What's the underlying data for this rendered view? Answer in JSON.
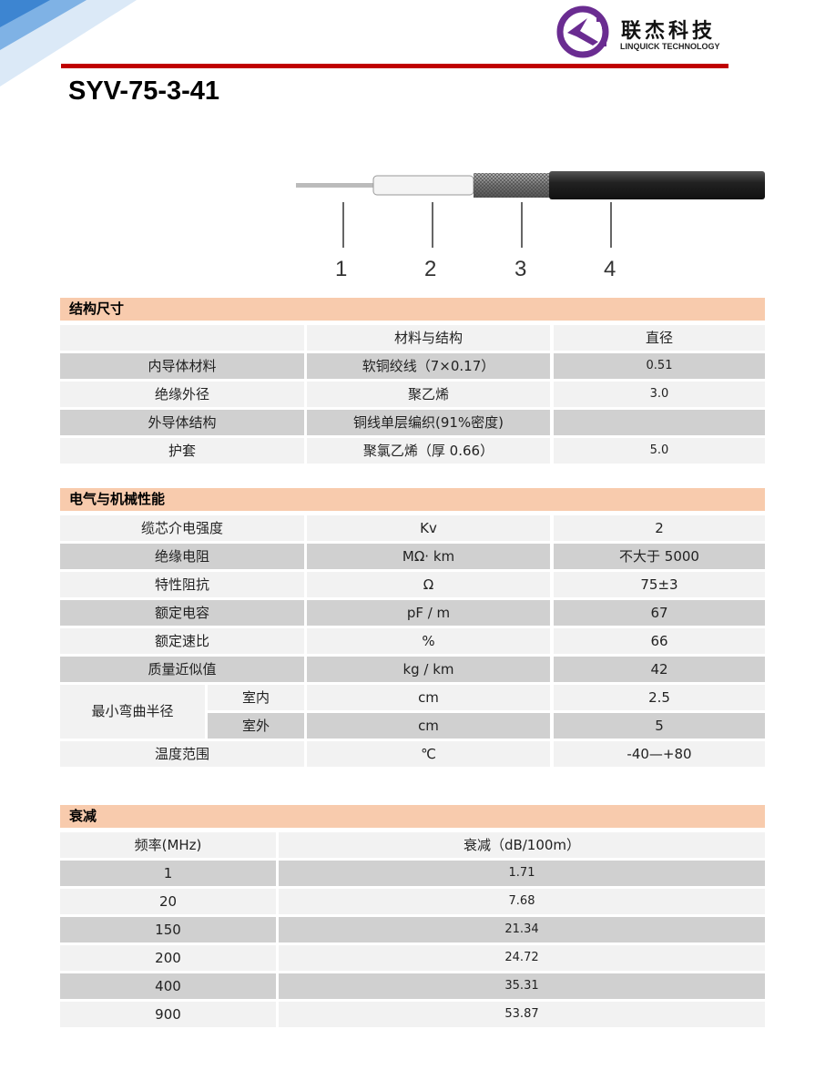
{
  "logo": {
    "cn": "联杰科技",
    "en": "LINQUICK TECHNOLOGY"
  },
  "title": "SYV-75-3-41",
  "callouts": [
    "1",
    "2",
    "3",
    "4"
  ],
  "structure": {
    "heading": "结构尺寸",
    "columns": [
      "",
      "材料与结构",
      "直径"
    ],
    "rows": [
      [
        "内导体材料",
        "软铜绞线（7×0.17）",
        "0.51"
      ],
      [
        "绝缘外径",
        "聚乙烯",
        "3.0"
      ],
      [
        "外导体结构",
        "铜线单层编织(91%密度)",
        ""
      ],
      [
        "护套",
        "聚氯乙烯（厚 0.66）",
        "5.0"
      ]
    ]
  },
  "electrical": {
    "heading": "电气与机械性能",
    "rows": [
      [
        "缆芯介电强度",
        "Kv",
        "2"
      ],
      [
        "绝缘电阻",
        "MΩ· km",
        "不大于 5000"
      ],
      [
        "特性阻抗",
        "Ω",
        "75±3"
      ],
      [
        "额定电容",
        "pF / m",
        "67"
      ],
      [
        "额定速比",
        "%",
        "66"
      ],
      [
        "质量近似值",
        "kg / km",
        "42"
      ]
    ],
    "bend": {
      "label": "最小弯曲半径",
      "rows": [
        [
          "室内",
          "cm",
          "2.5"
        ],
        [
          "室外",
          "cm",
          "5"
        ]
      ]
    },
    "temp": [
      "温度范围",
      "℃",
      "-40—+80"
    ]
  },
  "attenuation": {
    "heading": "衰减",
    "columns": [
      "频率(MHz)",
      "衰减（dB/100m）"
    ],
    "rows": [
      [
        "1",
        "1.71"
      ],
      [
        "20",
        "7.68"
      ],
      [
        "150",
        "21.34"
      ],
      [
        "200",
        "24.72"
      ],
      [
        "400",
        "35.31"
      ],
      [
        "900",
        "53.87"
      ]
    ]
  },
  "colors": {
    "accent_red": "#c00000",
    "section_header": "#f8cbad",
    "logo_purple": "#6a2c91"
  }
}
